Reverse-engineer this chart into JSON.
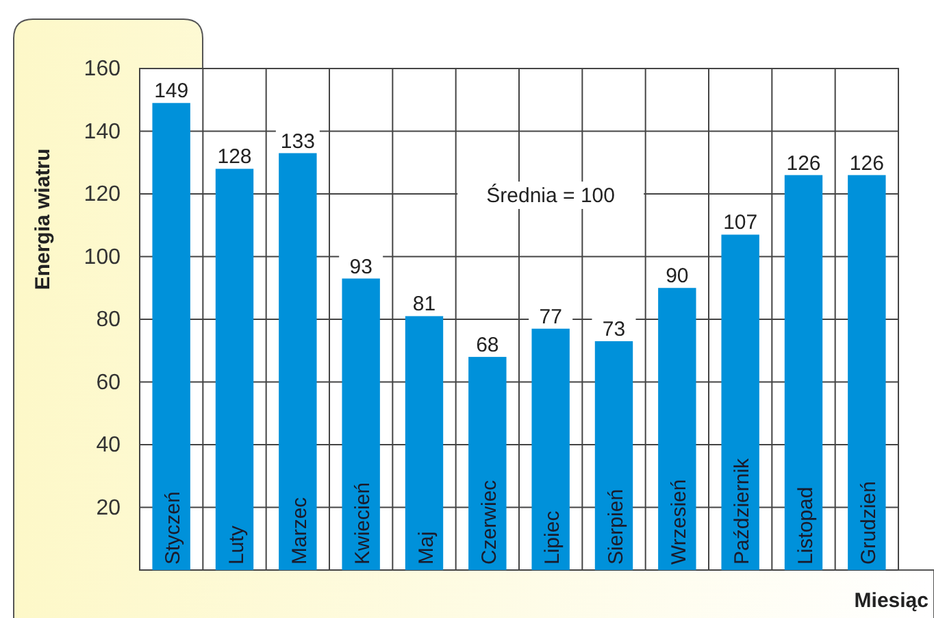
{
  "chart_data": {
    "type": "bar",
    "xlabel": "Miesiąc",
    "ylabel": "Energia wiatru",
    "categories": [
      "Styczeń",
      "Luty",
      "Marzec",
      "Kwiecień",
      "Maj",
      "Czerwiec",
      "Lipiec",
      "Sierpień",
      "Wrzesień",
      "Październik",
      "Listopad",
      "Grudzień"
    ],
    "values": [
      149,
      128,
      133,
      93,
      81,
      68,
      77,
      73,
      90,
      107,
      126,
      126
    ],
    "color": "#0091da",
    "ylim": [
      0,
      160
    ],
    "yticks": [
      20,
      40,
      60,
      80,
      100,
      120,
      140,
      160
    ],
    "grid": true,
    "data_labels": true,
    "annotations": [
      "Średnia = 100"
    ]
  }
}
